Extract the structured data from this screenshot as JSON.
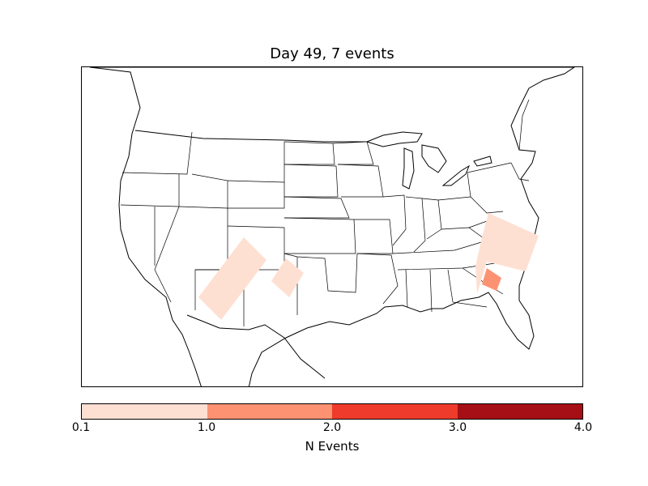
{
  "title": "Day 49, 7 events",
  "colorbar": {
    "label": "N Events",
    "ticks": [
      "0.1",
      "1.0",
      "2.0",
      "3.0",
      "4.0"
    ],
    "colors": [
      "#fee0d2",
      "#fc9272",
      "#ef3b2c",
      "#a50f15"
    ]
  },
  "map": {
    "region": "contiguous United States",
    "land_color": "#ffffff",
    "border_color": "#000000",
    "event_areas": [
      {
        "label": "Arizona / New Mexico swath",
        "n_events": 0.5,
        "color": "#fee0d2"
      },
      {
        "label": "Eastern New Mexico",
        "n_events": 0.5,
        "color": "#fee0d2"
      },
      {
        "label": "Carolinas",
        "n_events": 0.5,
        "color": "#fee0d2"
      },
      {
        "label": "Southeast Georgia",
        "n_events": 1.5,
        "color": "#fc9272"
      }
    ]
  }
}
